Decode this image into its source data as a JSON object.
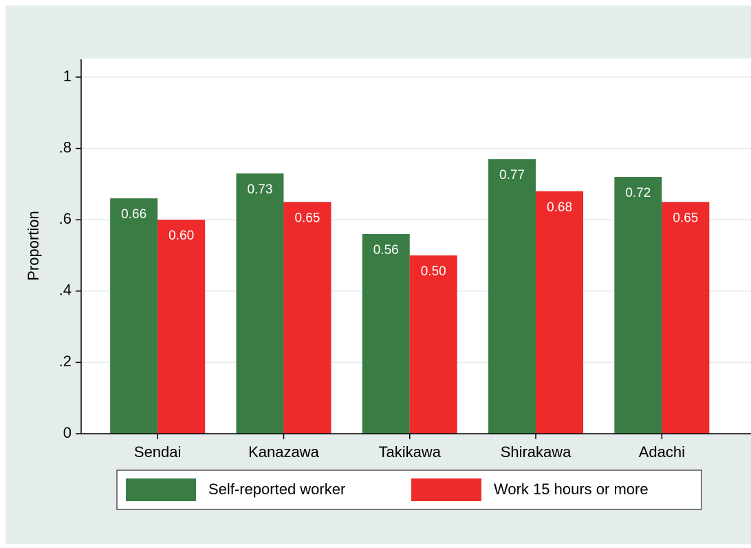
{
  "chart_data": {
    "type": "bar",
    "y_label": "Proportion",
    "categories": [
      "Sendai",
      "Kanazawa",
      "Takikawa",
      "Shirakawa",
      "Adachi"
    ],
    "series": [
      {
        "name": "Self-reported worker",
        "color": "#3a7d44",
        "values": [
          0.66,
          0.73,
          0.56,
          0.77,
          0.72
        ],
        "value_labels": [
          "0.66",
          "0.73",
          "0.56",
          "0.77",
          "0.72"
        ]
      },
      {
        "name": "Work 15 hours or more",
        "color": "#ef2a2a",
        "values": [
          0.6,
          0.65,
          0.5,
          0.68,
          0.65
        ],
        "value_labels": [
          "0.60",
          "0.65",
          "0.50",
          "0.68",
          "0.65"
        ]
      }
    ],
    "ylim": [
      0,
      1.05
    ],
    "yticks": [
      0,
      {
        "value": 0.2,
        "label": ".2"
      },
      {
        "value": 0.4,
        "label": ".4"
      },
      {
        "value": 0.6,
        "label": ".6"
      },
      {
        "value": 0.8,
        "label": ".8"
      },
      1
    ],
    "grid": true,
    "legend": "bottom"
  }
}
